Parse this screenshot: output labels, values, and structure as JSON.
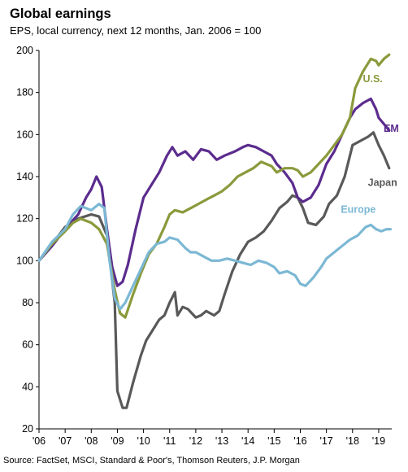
{
  "chart_data": {
    "type": "line",
    "title": "Global earnings",
    "subtitle": "EPS, local currency, next 12 months, Jan. 2006 = 100",
    "source": "Source: FactSet, MSCI, Standard & Poor's, Thomson Reuters, J.P. Morgan",
    "xlabel": "",
    "ylabel": "",
    "xlim": [
      2006,
      2019.5
    ],
    "ylim": [
      20,
      200
    ],
    "grid": false,
    "legend": "inline-labels",
    "x_ticks": [
      {
        "value": 2006,
        "label": "'06"
      },
      {
        "value": 2007,
        "label": "'07"
      },
      {
        "value": 2008,
        "label": "'08"
      },
      {
        "value": 2009,
        "label": "'09"
      },
      {
        "value": 2010,
        "label": "'10"
      },
      {
        "value": 2011,
        "label": "'11"
      },
      {
        "value": 2012,
        "label": "'12"
      },
      {
        "value": 2013,
        "label": "'13"
      },
      {
        "value": 2014,
        "label": "'14"
      },
      {
        "value": 2015,
        "label": "'15"
      },
      {
        "value": 2016,
        "label": "'16"
      },
      {
        "value": 2017,
        "label": "'17"
      },
      {
        "value": 2018,
        "label": "'18"
      },
      {
        "value": 2019,
        "label": "'19"
      }
    ],
    "y_ticks": [
      20,
      40,
      60,
      80,
      100,
      120,
      140,
      160,
      180,
      200
    ],
    "series": [
      {
        "name": "Japan",
        "color": "#595959",
        "points": [
          [
            2006,
            100
          ],
          [
            2006.5,
            108
          ],
          [
            2007,
            116
          ],
          [
            2007.5,
            120
          ],
          [
            2008,
            122
          ],
          [
            2008.3,
            121
          ],
          [
            2008.6,
            112
          ],
          [
            2008.9,
            80
          ],
          [
            2009.0,
            38
          ],
          [
            2009.2,
            30
          ],
          [
            2009.35,
            30
          ],
          [
            2009.6,
            42
          ],
          [
            2009.9,
            55
          ],
          [
            2010.1,
            62
          ],
          [
            2010.4,
            68
          ],
          [
            2010.6,
            72
          ],
          [
            2010.8,
            74
          ],
          [
            2011.0,
            80
          ],
          [
            2011.2,
            85
          ],
          [
            2011.3,
            74
          ],
          [
            2011.5,
            78
          ],
          [
            2011.7,
            77
          ],
          [
            2012.0,
            73
          ],
          [
            2012.2,
            74
          ],
          [
            2012.4,
            76
          ],
          [
            2012.7,
            74
          ],
          [
            2012.9,
            76
          ],
          [
            2013.1,
            84
          ],
          [
            2013.4,
            95
          ],
          [
            2013.7,
            103
          ],
          [
            2014.0,
            109
          ],
          [
            2014.3,
            111
          ],
          [
            2014.6,
            114
          ],
          [
            2014.9,
            119
          ],
          [
            2015.2,
            125
          ],
          [
            2015.5,
            128
          ],
          [
            2015.7,
            131
          ],
          [
            2015.9,
            130
          ],
          [
            2016.1,
            125
          ],
          [
            2016.3,
            118
          ],
          [
            2016.6,
            117
          ],
          [
            2016.9,
            121
          ],
          [
            2017.1,
            127
          ],
          [
            2017.4,
            131
          ],
          [
            2017.7,
            140
          ],
          [
            2018.0,
            155
          ],
          [
            2018.3,
            157
          ],
          [
            2018.6,
            159
          ],
          [
            2018.8,
            161
          ],
          [
            2019.0,
            155
          ],
          [
            2019.2,
            150
          ],
          [
            2019.4,
            144
          ]
        ]
      },
      {
        "name": "EM",
        "color": "#5b2c8e",
        "points": [
          [
            2006,
            100
          ],
          [
            2006.5,
            107
          ],
          [
            2007,
            115
          ],
          [
            2007.5,
            122
          ],
          [
            2007.8,
            130
          ],
          [
            2008,
            134
          ],
          [
            2008.2,
            140
          ],
          [
            2008.4,
            135
          ],
          [
            2008.6,
            115
          ],
          [
            2008.8,
            97
          ],
          [
            2009.0,
            88
          ],
          [
            2009.2,
            90
          ],
          [
            2009.4,
            98
          ],
          [
            2009.7,
            115
          ],
          [
            2010.0,
            130
          ],
          [
            2010.3,
            136
          ],
          [
            2010.6,
            142
          ],
          [
            2010.9,
            150
          ],
          [
            2011.1,
            154
          ],
          [
            2011.3,
            150
          ],
          [
            2011.6,
            152
          ],
          [
            2011.9,
            148
          ],
          [
            2012.2,
            153
          ],
          [
            2012.5,
            152
          ],
          [
            2012.8,
            148
          ],
          [
            2013.1,
            150
          ],
          [
            2013.5,
            152
          ],
          [
            2013.8,
            154
          ],
          [
            2014.0,
            155
          ],
          [
            2014.3,
            154
          ],
          [
            2014.6,
            152
          ],
          [
            2014.9,
            150
          ],
          [
            2015.1,
            146
          ],
          [
            2015.4,
            142
          ],
          [
            2015.7,
            137
          ],
          [
            2015.9,
            130
          ],
          [
            2016.1,
            128
          ],
          [
            2016.4,
            130
          ],
          [
            2016.7,
            136
          ],
          [
            2017.0,
            146
          ],
          [
            2017.3,
            152
          ],
          [
            2017.6,
            160
          ],
          [
            2017.9,
            168
          ],
          [
            2018.1,
            172
          ],
          [
            2018.4,
            175
          ],
          [
            2018.7,
            177
          ],
          [
            2018.9,
            172
          ],
          [
            2019.0,
            168
          ],
          [
            2019.2,
            165
          ],
          [
            2019.4,
            162
          ]
        ]
      },
      {
        "name": "U.S.",
        "color": "#8a9a3b",
        "points": [
          [
            2006,
            100
          ],
          [
            2006.5,
            108
          ],
          [
            2007,
            114
          ],
          [
            2007.3,
            118
          ],
          [
            2007.6,
            120
          ],
          [
            2008.0,
            118
          ],
          [
            2008.3,
            115
          ],
          [
            2008.6,
            108
          ],
          [
            2008.9,
            86
          ],
          [
            2009.1,
            75
          ],
          [
            2009.3,
            73
          ],
          [
            2009.6,
            84
          ],
          [
            2009.9,
            94
          ],
          [
            2010.2,
            103
          ],
          [
            2010.5,
            108
          ],
          [
            2010.8,
            116
          ],
          [
            2011.0,
            122
          ],
          [
            2011.2,
            124
          ],
          [
            2011.5,
            123
          ],
          [
            2011.8,
            125
          ],
          [
            2012.1,
            127
          ],
          [
            2012.4,
            129
          ],
          [
            2012.7,
            131
          ],
          [
            2013.0,
            133
          ],
          [
            2013.3,
            136
          ],
          [
            2013.6,
            140
          ],
          [
            2013.9,
            142
          ],
          [
            2014.2,
            144
          ],
          [
            2014.5,
            147
          ],
          [
            2014.7,
            146
          ],
          [
            2014.9,
            145
          ],
          [
            2015.1,
            142
          ],
          [
            2015.4,
            144
          ],
          [
            2015.7,
            144
          ],
          [
            2015.9,
            143
          ],
          [
            2016.1,
            140
          ],
          [
            2016.4,
            142
          ],
          [
            2016.7,
            146
          ],
          [
            2017.0,
            150
          ],
          [
            2017.3,
            155
          ],
          [
            2017.6,
            160
          ],
          [
            2017.9,
            168
          ],
          [
            2018.1,
            182
          ],
          [
            2018.4,
            190
          ],
          [
            2018.7,
            196
          ],
          [
            2018.9,
            195
          ],
          [
            2019.0,
            193
          ],
          [
            2019.2,
            196
          ],
          [
            2019.4,
            198
          ]
        ]
      },
      {
        "name": "Europe",
        "color": "#7cb8d4",
        "points": [
          [
            2006,
            100
          ],
          [
            2006.5,
            109
          ],
          [
            2007,
            115
          ],
          [
            2007.3,
            122
          ],
          [
            2007.6,
            126
          ],
          [
            2007.8,
            125
          ],
          [
            2008.0,
            124
          ],
          [
            2008.3,
            127
          ],
          [
            2008.5,
            125
          ],
          [
            2008.7,
            100
          ],
          [
            2008.9,
            82
          ],
          [
            2009.1,
            77
          ],
          [
            2009.3,
            80
          ],
          [
            2009.6,
            88
          ],
          [
            2009.9,
            96
          ],
          [
            2010.2,
            104
          ],
          [
            2010.5,
            108
          ],
          [
            2010.8,
            109
          ],
          [
            2011.0,
            111
          ],
          [
            2011.3,
            110
          ],
          [
            2011.6,
            106
          ],
          [
            2011.8,
            104
          ],
          [
            2012.0,
            104
          ],
          [
            2012.3,
            102
          ],
          [
            2012.6,
            100
          ],
          [
            2012.9,
            100
          ],
          [
            2013.2,
            101
          ],
          [
            2013.5,
            100
          ],
          [
            2013.8,
            99
          ],
          [
            2014.1,
            98
          ],
          [
            2014.4,
            100
          ],
          [
            2014.7,
            99
          ],
          [
            2015.0,
            97
          ],
          [
            2015.2,
            94
          ],
          [
            2015.5,
            95
          ],
          [
            2015.8,
            93
          ],
          [
            2016.0,
            89
          ],
          [
            2016.2,
            88
          ],
          [
            2016.5,
            92
          ],
          [
            2016.8,
            97
          ],
          [
            2017.0,
            101
          ],
          [
            2017.3,
            104
          ],
          [
            2017.6,
            107
          ],
          [
            2017.9,
            110
          ],
          [
            2018.2,
            112
          ],
          [
            2018.5,
            116
          ],
          [
            2018.7,
            117
          ],
          [
            2018.9,
            115
          ],
          [
            2019.1,
            114
          ],
          [
            2019.3,
            115
          ],
          [
            2019.45,
            115
          ]
        ]
      }
    ]
  }
}
